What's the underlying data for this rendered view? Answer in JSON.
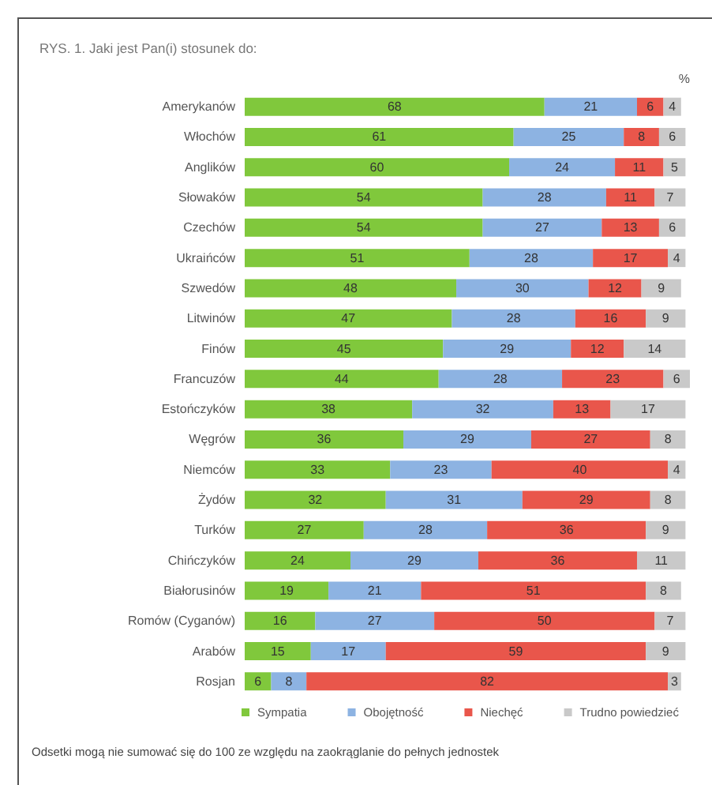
{
  "chart_data": {
    "type": "bar",
    "orientation": "horizontal",
    "stacked": true,
    "title": "RYS. 1. Jaki jest Pan(i) stosunek do:",
    "xlabel": "%",
    "categories": [
      "Amerykanów",
      "Włochów",
      "Anglików",
      "Słowaków",
      "Czechów",
      "Ukraińców",
      "Szwedów",
      "Litwinów",
      "Finów",
      "Francuzów",
      "Estończyków",
      "Węgrów",
      "Niemców",
      "Żydów",
      "Turków",
      "Chińczyków",
      "Białorusinów",
      "Romów (Cyganów)",
      "Arabów",
      "Rosjan"
    ],
    "series": [
      {
        "name": "Sympatia",
        "color": "#80c83c",
        "values": [
          68,
          61,
          60,
          54,
          54,
          51,
          48,
          47,
          45,
          44,
          38,
          36,
          33,
          32,
          27,
          24,
          19,
          16,
          15,
          6
        ]
      },
      {
        "name": "Obojętność",
        "color": "#8db3e2",
        "values": [
          21,
          25,
          24,
          28,
          27,
          28,
          30,
          28,
          29,
          28,
          32,
          29,
          23,
          31,
          28,
          29,
          21,
          27,
          17,
          8
        ]
      },
      {
        "name": "Niechęć",
        "color": "#e9564b",
        "values": [
          6,
          8,
          11,
          11,
          13,
          17,
          12,
          16,
          12,
          23,
          13,
          27,
          40,
          29,
          36,
          36,
          51,
          50,
          59,
          82
        ]
      },
      {
        "name": "Trudno powiedzieć",
        "color": "#c9c9c9",
        "values": [
          4,
          6,
          5,
          7,
          6,
          4,
          9,
          9,
          14,
          6,
          17,
          8,
          4,
          8,
          9,
          11,
          8,
          7,
          9,
          3
        ]
      }
    ],
    "tick_labels": "y",
    "data_labels": true,
    "legend": "bottom",
    "annotations": [
      "Odsetki mogą nie sumować się do 100 ze względu na zaokrąglanie do pełnych jednostek"
    ]
  }
}
